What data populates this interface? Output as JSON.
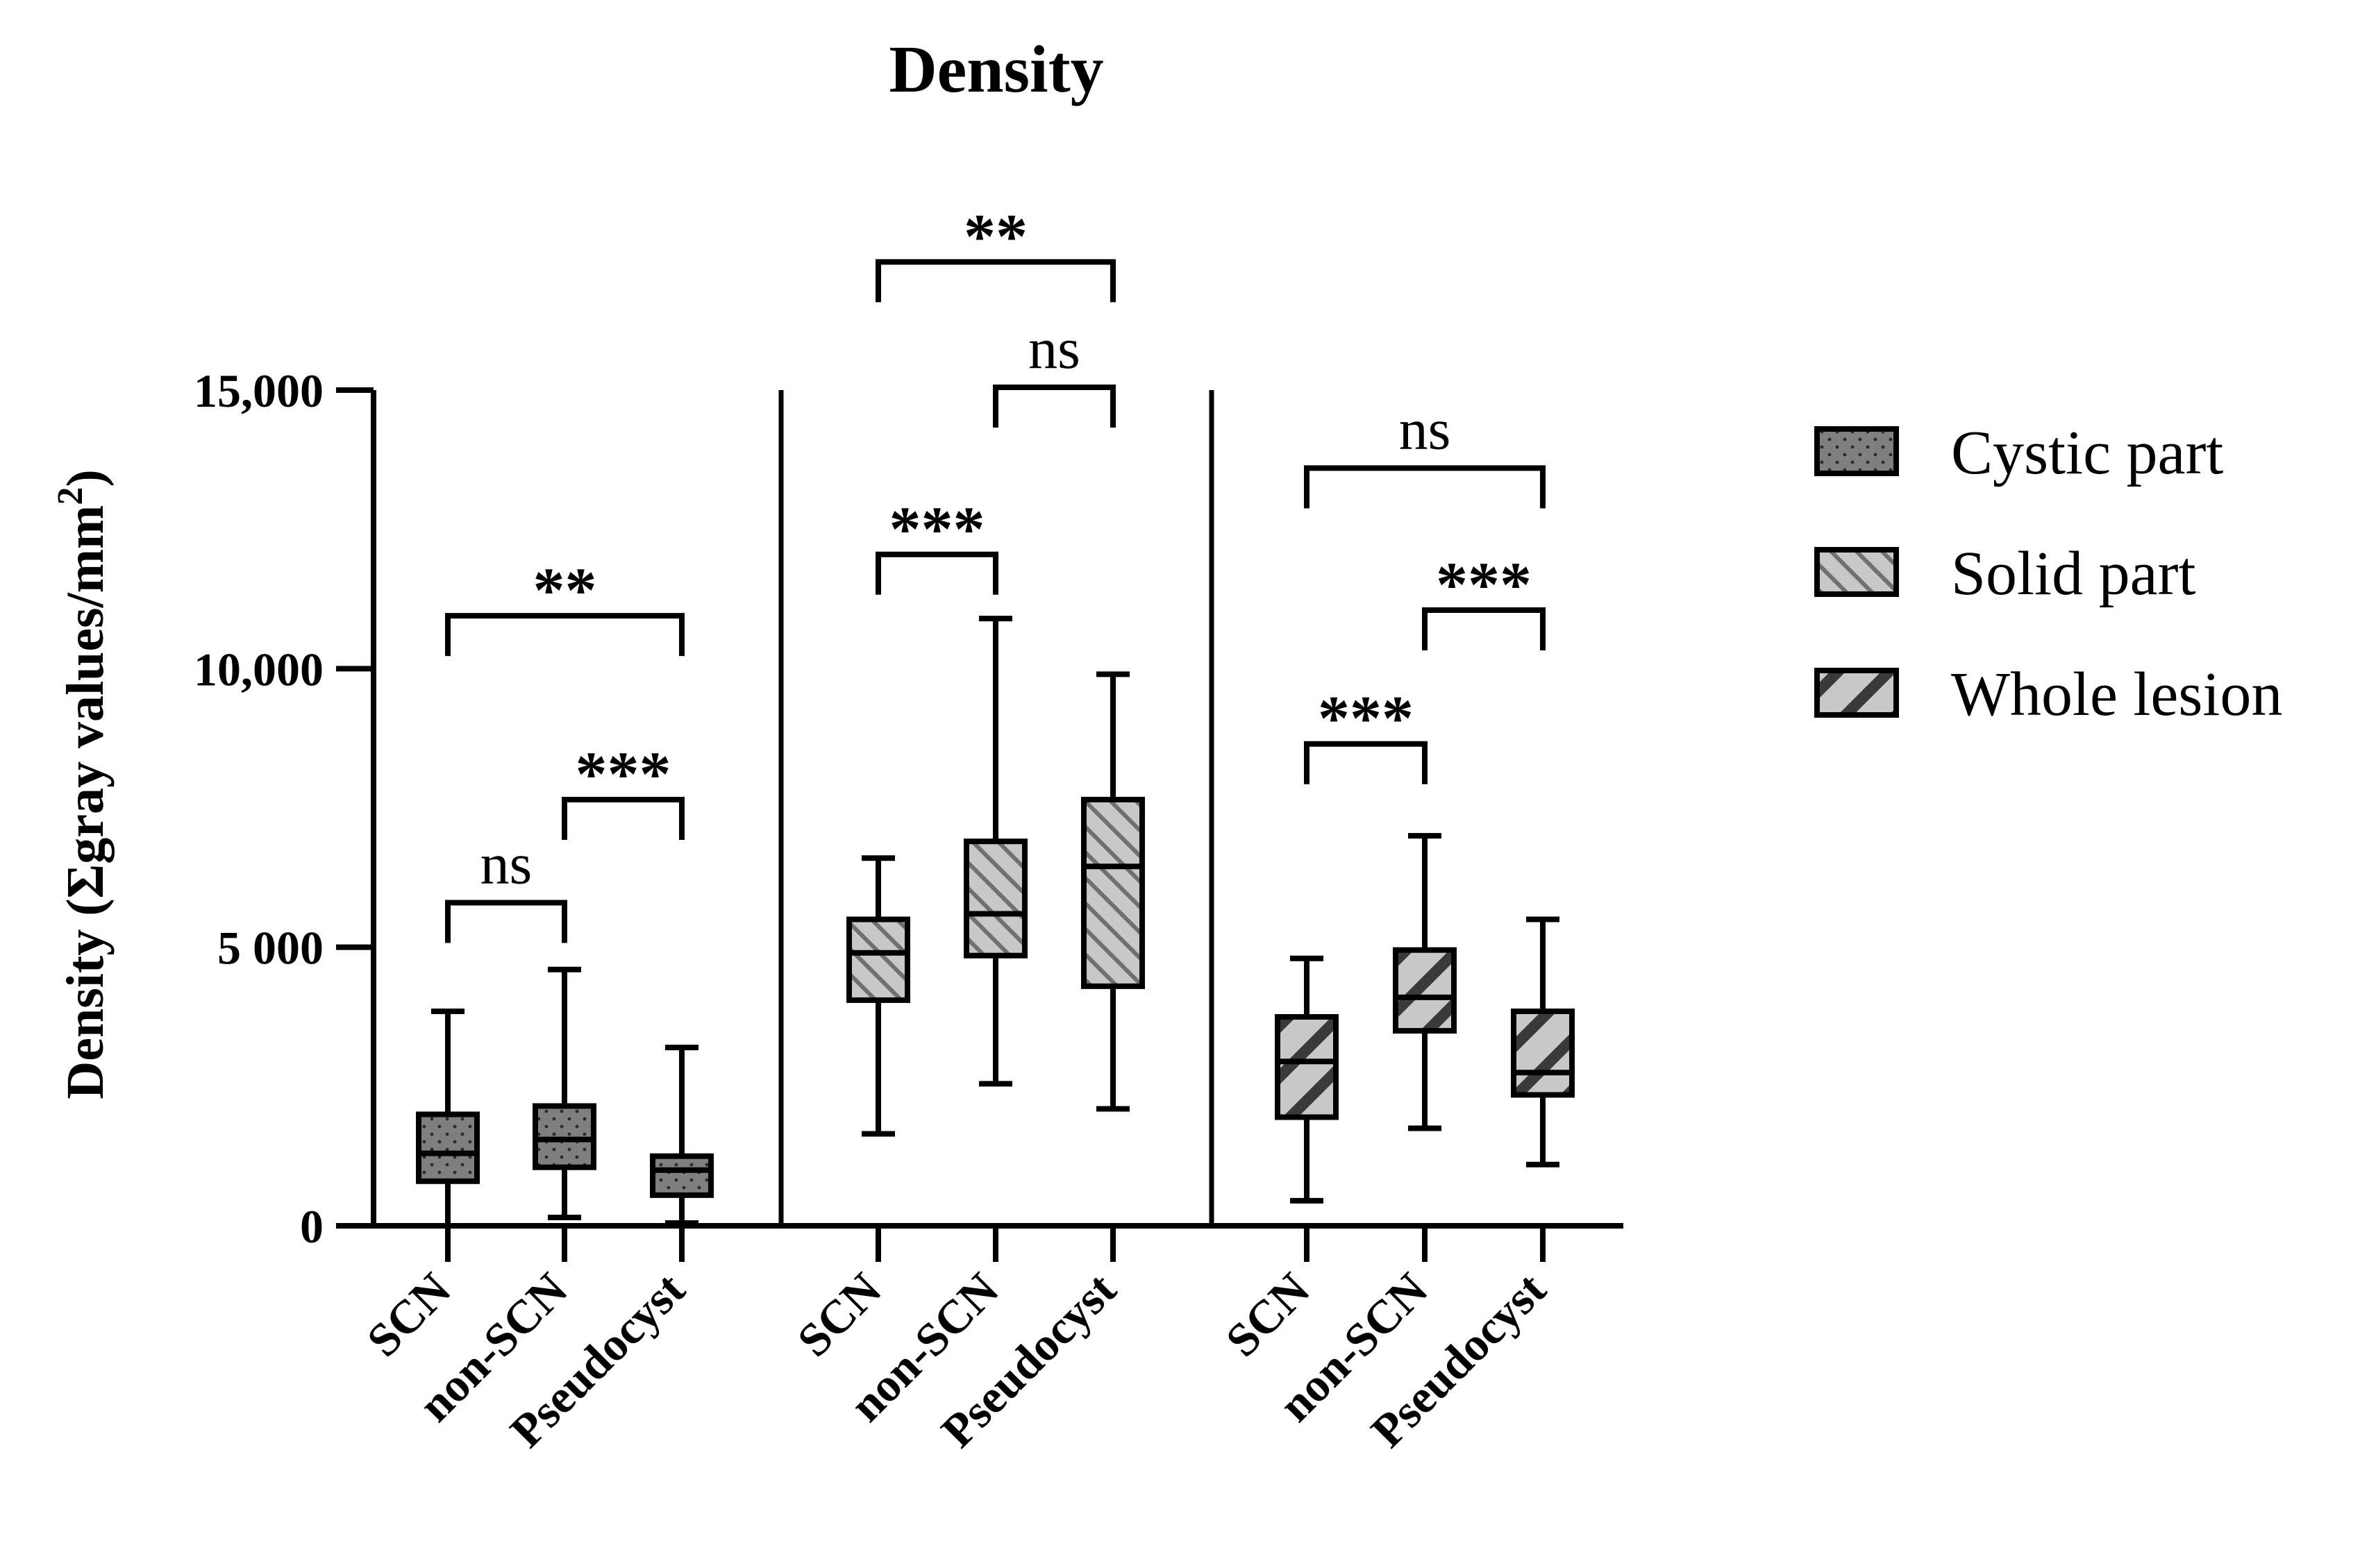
{
  "chart_data": {
    "type": "box",
    "title": "Density",
    "ylabel": "Density (Σgray values/mm²)",
    "ylabel_main": "Density (Σgray values/mm",
    "ylabel_sup": "2",
    "ylabel_close": ")",
    "ylim": [
      0,
      15000
    ],
    "yticks": [
      {
        "value": 0,
        "label": "0"
      },
      {
        "value": 5000,
        "label": "5 000"
      },
      {
        "value": 10000,
        "label": "10,000"
      },
      {
        "value": 15000,
        "label": "15,000"
      }
    ],
    "categories": [
      "SCN",
      "non-SCN",
      "Pseudocyst"
    ],
    "groups": [
      {
        "name": "Cystic part",
        "color": "#7f7f7f",
        "pattern": "dots",
        "boxes": [
          {
            "category": "SCN",
            "min": 0,
            "q1": 800,
            "median": 1300,
            "q3": 2000,
            "max": 3850
          },
          {
            "category": "non-SCN",
            "min": 150,
            "q1": 1050,
            "median": 1550,
            "q3": 2150,
            "max": 4600
          },
          {
            "category": "Pseudocyst",
            "min": 50,
            "q1": 550,
            "median": 1000,
            "q3": 1250,
            "max": 3200
          }
        ],
        "comparisons": [
          {
            "from": 0,
            "to": 1,
            "label": "ns",
            "level": 5800
          },
          {
            "from": 1,
            "to": 2,
            "label": "***",
            "level": 7650
          },
          {
            "from": 0,
            "to": 2,
            "label": "**",
            "level": 10950
          }
        ]
      },
      {
        "name": "Solid part",
        "color": "#c8c8c8",
        "pattern": "back-diagonal",
        "boxes": [
          {
            "category": "SCN",
            "min": 1650,
            "q1": 4050,
            "median": 4900,
            "q3": 5500,
            "max": 6600
          },
          {
            "category": "non-SCN",
            "min": 2550,
            "q1": 4850,
            "median": 5600,
            "q3": 6900,
            "max": 10900
          },
          {
            "category": "Pseudocyst",
            "min": 2100,
            "q1": 4300,
            "median": 6450,
            "q3": 7650,
            "max": 9900
          }
        ],
        "comparisons": [
          {
            "from": 0,
            "to": 1,
            "label": "***",
            "level": 12050
          },
          {
            "from": 1,
            "to": 2,
            "label": "ns",
            "level": 15050
          },
          {
            "from": 0,
            "to": 2,
            "label": "**",
            "level": 17300
          }
        ]
      },
      {
        "name": "Whole lesion",
        "color": "#c8c8c8",
        "pattern": "forward-diagonal",
        "boxes": [
          {
            "category": "SCN",
            "min": 450,
            "q1": 1950,
            "median": 2950,
            "q3": 3750,
            "max": 4800
          },
          {
            "category": "non-SCN",
            "min": 1750,
            "q1": 3500,
            "median": 4100,
            "q3": 4950,
            "max": 7000
          },
          {
            "category": "Pseudocyst",
            "min": 1100,
            "q1": 2350,
            "median": 2750,
            "q3": 3850,
            "max": 5500
          }
        ],
        "comparisons": [
          {
            "from": 0,
            "to": 1,
            "label": "***",
            "level": 8650
          },
          {
            "from": 1,
            "to": 2,
            "label": "***",
            "level": 11050
          },
          {
            "from": 0,
            "to": 2,
            "label": "ns",
            "level": 13600
          }
        ]
      }
    ],
    "legend": {
      "position": "right",
      "entries": [
        "Cystic part",
        "Solid part",
        "Whole lesion"
      ]
    }
  }
}
